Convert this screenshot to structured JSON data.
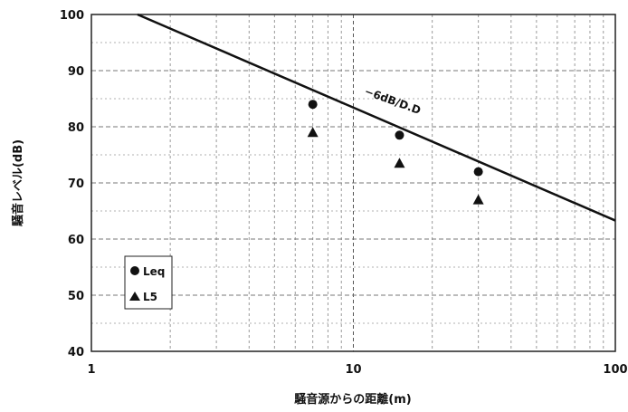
{
  "chart_data": {
    "type": "scatter",
    "x_scale": "log",
    "xlim": [
      1,
      100
    ],
    "ylim": [
      40,
      100
    ],
    "y_ticks": [
      40,
      50,
      60,
      70,
      80,
      90,
      100
    ],
    "x_ticks": [
      1,
      10,
      100
    ],
    "x_tick_labels": [
      "1",
      "10",
      "100"
    ],
    "xlabel": "騒音源からの距離(m)",
    "ylabel": "騒音レベル(dB)",
    "grid": true,
    "legend_position": "bottom-left",
    "series": [
      {
        "name": "Leq",
        "marker": "circle",
        "x": [
          7,
          15,
          30
        ],
        "y": [
          84,
          78.5,
          72
        ]
      },
      {
        "name": "L5",
        "marker": "triangle",
        "x": [
          7,
          15,
          30
        ],
        "y": [
          79,
          73.5,
          67
        ]
      }
    ],
    "reference_line": {
      "label": "−6dB/D.D",
      "x": [
        1.5,
        100
      ],
      "y": [
        100,
        63.3
      ]
    },
    "colors": {
      "marks": "#111111",
      "grid": "#9a9a9a",
      "axis": "#222222"
    }
  }
}
